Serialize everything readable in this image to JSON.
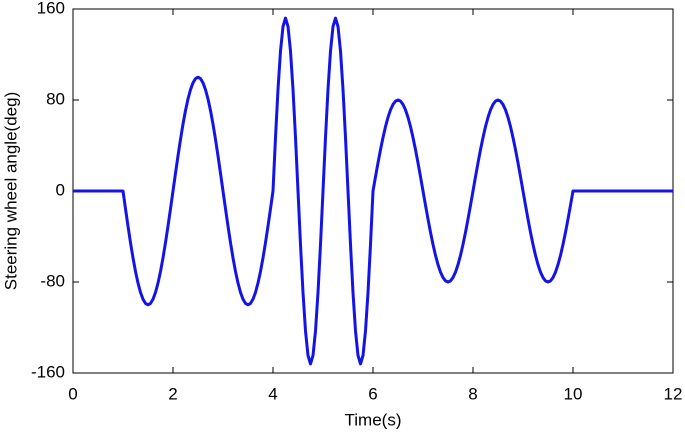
{
  "chart_data": {
    "type": "line",
    "x_label": "Time(s)",
    "y_label": "Steering wheel angle(deg)",
    "color": "#1414e6",
    "xlim": [
      0,
      12
    ],
    "xticks": [
      0,
      2,
      4,
      6,
      8,
      10,
      12
    ],
    "ylim": [
      -160,
      160
    ],
    "yticks": [
      -160,
      -80,
      0,
      80,
      160
    ],
    "grid": false,
    "x": [
      0,
      1,
      1.05,
      1.1,
      1.15,
      1.2,
      1.25,
      1.3,
      1.35,
      1.4,
      1.45,
      1.5,
      1.55,
      1.6,
      1.65,
      1.7,
      1.75,
      1.8,
      1.85,
      1.9,
      1.95,
      2,
      2.05,
      2.1,
      2.15,
      2.2,
      2.25,
      2.3,
      2.35,
      2.4,
      2.45,
      2.5,
      2.55,
      2.6,
      2.65,
      2.7,
      2.75,
      2.8,
      2.85,
      2.9,
      2.95,
      3,
      3.05,
      3.1,
      3.15,
      3.2,
      3.25,
      3.3,
      3.35,
      3.4,
      3.45,
      3.5,
      3.55,
      3.6,
      3.65,
      3.7,
      3.75,
      3.8,
      3.85,
      3.9,
      3.95,
      4,
      4.05,
      4.1,
      4.15,
      4.2,
      4.25,
      4.3,
      4.35,
      4.4,
      4.45,
      4.5,
      4.55,
      4.6,
      4.65,
      4.7,
      4.75,
      4.8,
      4.85,
      4.9,
      4.95,
      5,
      5.05,
      5.1,
      5.15,
      5.2,
      5.25,
      5.3,
      5.35,
      5.4,
      5.45,
      5.5,
      5.55,
      5.6,
      5.65,
      5.7,
      5.75,
      5.8,
      5.85,
      5.9,
      5.95,
      6,
      6.05,
      6.1,
      6.15,
      6.2,
      6.25,
      6.3,
      6.35,
      6.4,
      6.45,
      6.5,
      6.55,
      6.6,
      6.65,
      6.7,
      6.75,
      6.8,
      6.85,
      6.9,
      6.95,
      7,
      7.05,
      7.1,
      7.15,
      7.2,
      7.25,
      7.3,
      7.35,
      7.4,
      7.45,
      7.5,
      7.55,
      7.6,
      7.65,
      7.7,
      7.75,
      7.8,
      7.85,
      7.9,
      7.95,
      8,
      8.05,
      8.1,
      8.15,
      8.2,
      8.25,
      8.3,
      8.35,
      8.4,
      8.45,
      8.5,
      8.55,
      8.6,
      8.65,
      8.7,
      8.75,
      8.8,
      8.85,
      8.9,
      8.95,
      9,
      9.05,
      9.1,
      9.15,
      9.2,
      9.25,
      9.3,
      9.35,
      9.4,
      9.45,
      9.5,
      9.55,
      9.6,
      9.65,
      9.7,
      9.75,
      9.8,
      9.85,
      9.9,
      9.95,
      10,
      12
    ],
    "values": [
      0,
      0,
      -15.6,
      -30.9,
      -45.4,
      -58.8,
      -70.7,
      -80.9,
      -89.1,
      -95.1,
      -98.8,
      -100,
      -98.8,
      -95.1,
      -89.1,
      -80.9,
      -70.7,
      -58.8,
      -45.4,
      -30.9,
      -15.6,
      0,
      15.6,
      30.9,
      45.4,
      58.8,
      70.7,
      80.9,
      89.1,
      95.1,
      98.8,
      100,
      98.8,
      95.1,
      89.1,
      80.9,
      70.7,
      58.8,
      45.4,
      30.9,
      15.6,
      0,
      -15.6,
      -30.9,
      -45.4,
      -58.8,
      -70.7,
      -80.9,
      -89.1,
      -95.1,
      -98.8,
      -100,
      -98.8,
      -95.1,
      -89.1,
      -80.9,
      -70.7,
      -58.8,
      -45.4,
      -30.9,
      -15.6,
      0,
      47.0,
      89.3,
      123.0,
      144.6,
      152,
      144.6,
      123.0,
      89.3,
      47.0,
      0,
      -47.0,
      -89.3,
      -123.0,
      -144.6,
      -152,
      -144.6,
      -123.0,
      -89.3,
      -47.0,
      0,
      47.0,
      89.3,
      123.0,
      144.6,
      152,
      144.6,
      123.0,
      89.3,
      47.0,
      0,
      -47.0,
      -89.3,
      -123.0,
      -144.6,
      -152,
      -144.6,
      -123.0,
      -89.3,
      -47.0,
      0,
      12.5,
      24.7,
      36.3,
      47.0,
      56.6,
      64.7,
      71.3,
      76.1,
      79.0,
      80,
      79.0,
      76.1,
      71.3,
      64.7,
      56.6,
      47.0,
      36.3,
      24.7,
      12.5,
      0,
      -12.5,
      -24.7,
      -36.3,
      -47.0,
      -56.6,
      -64.7,
      -71.3,
      -76.1,
      -79.0,
      -80,
      -79.0,
      -76.1,
      -71.3,
      -64.7,
      -56.6,
      -47.0,
      -36.3,
      -24.7,
      -12.5,
      0,
      12.5,
      24.7,
      36.3,
      47.0,
      56.6,
      64.7,
      71.3,
      76.1,
      79.0,
      80,
      79.0,
      76.1,
      71.3,
      64.7,
      56.6,
      47.0,
      36.3,
      24.7,
      12.5,
      0,
      -12.5,
      -24.7,
      -36.3,
      -47.0,
      -56.6,
      -64.7,
      -71.3,
      -76.1,
      -79.0,
      -80,
      -79.0,
      -76.1,
      -71.3,
      -64.7,
      -56.6,
      -47.0,
      -36.3,
      -24.7,
      -12.5,
      0,
      0
    ]
  }
}
